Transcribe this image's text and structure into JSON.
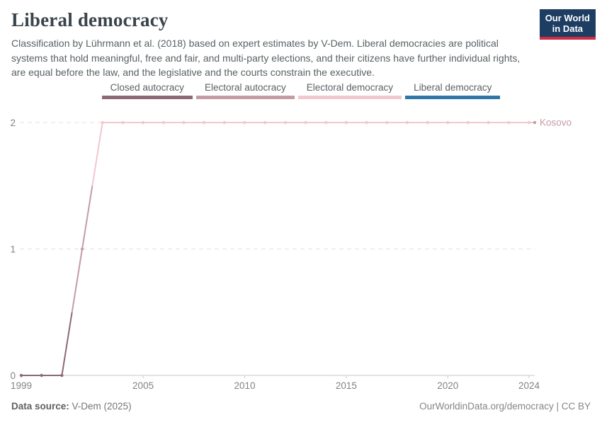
{
  "header": {
    "title": "Liberal democracy",
    "subtitle": "Classification by Lührmann et al. (2018) based on expert estimates by V-Dem. Liberal democracies are political systems that hold meaningful, free and fair, and multi-party elections, and their citizens have further individual rights, are equal before the law, and the legislative and the courts constrain the executive.",
    "logo": {
      "line1": "Our World",
      "line2": "in Data",
      "bg_color": "#1d3d63",
      "accent_color": "#cf2d41"
    }
  },
  "legend": {
    "items": [
      {
        "label": "Closed autocracy",
        "color": "#8d6a73"
      },
      {
        "label": "Electoral autocracy",
        "color": "#c59ba5"
      },
      {
        "label": "Electoral democracy",
        "color": "#f2c7ce"
      },
      {
        "label": "Liberal democracy",
        "color": "#3076a6"
      }
    ]
  },
  "chart_data": {
    "type": "line",
    "title": "Liberal democracy",
    "x": [
      1999,
      2000,
      2001,
      2002,
      2003,
      2004,
      2005,
      2006,
      2007,
      2008,
      2009,
      2010,
      2011,
      2012,
      2013,
      2014,
      2015,
      2016,
      2017,
      2018,
      2019,
      2020,
      2021,
      2022,
      2023,
      2024
    ],
    "series": [
      {
        "name": "Kosovo",
        "values": [
          0,
          0,
          0,
          1,
          2,
          2,
          2,
          2,
          2,
          2,
          2,
          2,
          2,
          2,
          2,
          2,
          2,
          2,
          2,
          2,
          2,
          2,
          2,
          2,
          2,
          2
        ],
        "label_color": "#c89ca6"
      }
    ],
    "value_categories": {
      "0": "Closed autocracy",
      "1": "Electoral autocracy",
      "2": "Electoral democracy",
      "3": "Liberal democracy"
    },
    "x_ticks": [
      1999,
      2005,
      2010,
      2015,
      2020,
      2024
    ],
    "y_ticks": [
      0,
      1,
      2
    ],
    "xlim": [
      1999,
      2024
    ],
    "ylim": [
      0,
      2
    ],
    "grid": "horizontal-dashed",
    "legend_position": "top-center",
    "axis_label_color": "#838383",
    "grid_color": "#e0e0e0",
    "axis_color": "#c9c9c9"
  },
  "footer": {
    "data_source_label": "Data source:",
    "data_source_value": " V-Dem (2025)",
    "rights": "OurWorldinData.org/democracy | CC BY"
  }
}
